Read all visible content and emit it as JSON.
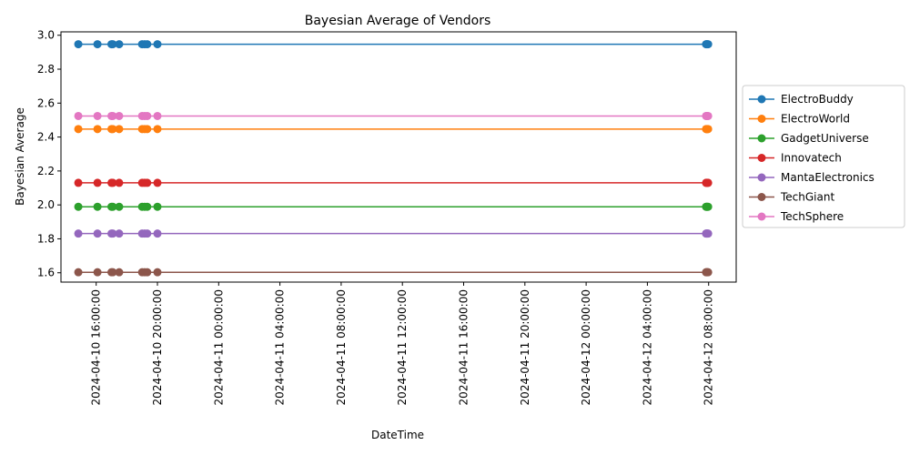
{
  "chart_data": {
    "type": "line",
    "title": "Bayesian Average of Vendors",
    "xlabel": "DateTime",
    "ylabel": "Bayesian Average",
    "xlim": [
      "2024-04-10 13:42:00",
      "2024-04-12 09:48:00"
    ],
    "ylim": [
      1.545,
      3.02
    ],
    "xticks": [
      "2024-04-10 16:00:00",
      "2024-04-10 20:00:00",
      "2024-04-11 00:00:00",
      "2024-04-11 04:00:00",
      "2024-04-11 08:00:00",
      "2024-04-11 12:00:00",
      "2024-04-11 16:00:00",
      "2024-04-11 20:00:00",
      "2024-04-12 00:00:00",
      "2024-04-12 04:00:00",
      "2024-04-12 08:00:00"
    ],
    "yticks": [
      "1.6",
      "1.8",
      "2.0",
      "2.2",
      "2.4",
      "2.6",
      "2.8",
      "3.0"
    ],
    "x": [
      "2024-04-10 14:50:00",
      "2024-04-10 16:05:00",
      "2024-04-10 17:00:00",
      "2024-04-10 17:05:00",
      "2024-04-10 17:30:00",
      "2024-04-10 19:00:00",
      "2024-04-10 19:10:00",
      "2024-04-10 19:20:00",
      "2024-04-10 20:00:00",
      "2024-04-12 07:50:00",
      "2024-04-12 07:52:00",
      "2024-04-12 07:55:00",
      "2024-04-12 07:58:00"
    ],
    "series": [
      {
        "name": "ElectroBuddy",
        "color": "#1f77b4",
        "value": 2.947
      },
      {
        "name": "ElectroWorld",
        "color": "#ff7f0e",
        "value": 2.447
      },
      {
        "name": "GadgetUniverse",
        "color": "#2ca02c",
        "value": 1.989
      },
      {
        "name": "Innovatech",
        "color": "#d62728",
        "value": 2.13
      },
      {
        "name": "MantaElectronics",
        "color": "#9467bd",
        "value": 1.831
      },
      {
        "name": "TechGiant",
        "color": "#8c564b",
        "value": 1.603
      },
      {
        "name": "TechSphere",
        "color": "#e377c2",
        "value": 2.524
      }
    ],
    "grid": false,
    "legend": "right"
  }
}
